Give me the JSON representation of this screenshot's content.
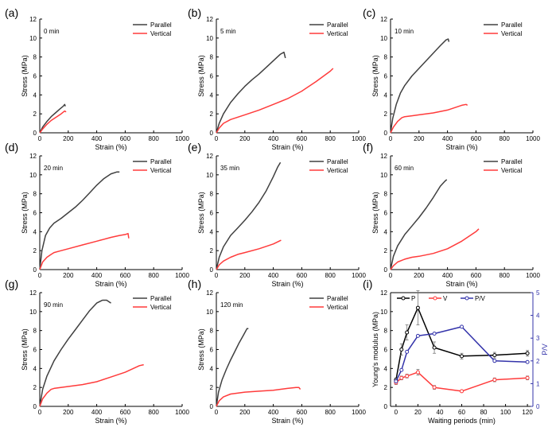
{
  "colors": {
    "parallel": "#404040",
    "vertical": "#ff3b3b",
    "pv": "#3333aa",
    "axis": "#000000"
  },
  "chart_data": [
    {
      "id": "a",
      "type": "line",
      "panel_label": "(a)",
      "annotation": "0 min",
      "xlabel": "Strain (%)",
      "ylabel": "Stress (MPa)",
      "xlim": [
        0,
        1000
      ],
      "ylim": [
        0,
        12
      ],
      "xticks": [
        "0",
        "200",
        "400",
        "600",
        "800",
        "1000"
      ],
      "yticks": [
        "0",
        "2",
        "4",
        "6",
        "8",
        "10",
        "12"
      ],
      "legend": [
        "Parallel",
        "Vertical"
      ],
      "series": [
        {
          "name": "Parallel",
          "x": [
            0,
            20,
            50,
            80,
            110,
            140,
            165,
            175,
            180
          ],
          "y": [
            0,
            0.6,
            1.2,
            1.7,
            2.1,
            2.5,
            2.8,
            3.0,
            2.8
          ]
        },
        {
          "name": "Vertical",
          "x": [
            0,
            20,
            50,
            80,
            120,
            150,
            175,
            185
          ],
          "y": [
            0,
            0.4,
            0.9,
            1.3,
            1.7,
            2.0,
            2.3,
            2.2
          ]
        }
      ]
    },
    {
      "id": "b",
      "type": "line",
      "panel_label": "(b)",
      "annotation": "5 min",
      "xlabel": "Strain (%)",
      "ylabel": "Stress (MPa)",
      "xlim": [
        0,
        1000
      ],
      "ylim": [
        0,
        12
      ],
      "xticks": [
        "0",
        "200",
        "400",
        "600",
        "800",
        "1000"
      ],
      "yticks": [
        "0",
        "2",
        "4",
        "6",
        "8",
        "10",
        "12"
      ],
      "legend": [
        "Parallel",
        "Vertical"
      ],
      "series": [
        {
          "name": "Parallel",
          "x": [
            0,
            20,
            50,
            100,
            150,
            200,
            250,
            300,
            350,
            400,
            450,
            475,
            485
          ],
          "y": [
            0,
            1.0,
            2.0,
            3.2,
            4.1,
            4.9,
            5.6,
            6.2,
            6.9,
            7.6,
            8.3,
            8.5,
            7.9
          ]
        },
        {
          "name": "Vertical",
          "x": [
            0,
            20,
            50,
            100,
            200,
            300,
            400,
            500,
            600,
            700,
            800,
            820
          ],
          "y": [
            0,
            0.5,
            1.0,
            1.4,
            1.9,
            2.4,
            3.0,
            3.6,
            4.4,
            5.4,
            6.5,
            6.8
          ]
        }
      ]
    },
    {
      "id": "c",
      "type": "line",
      "panel_label": "(c)",
      "annotation": "10 min",
      "xlabel": "Strain (%)",
      "ylabel": "Stress (MPa)",
      "xlim": [
        0,
        1000
      ],
      "ylim": [
        0,
        12
      ],
      "xticks": [
        "0",
        "200",
        "400",
        "600",
        "800",
        "1000"
      ],
      "yticks": [
        "0",
        "2",
        "4",
        "6",
        "8",
        "10",
        "12"
      ],
      "legend": [
        "Parallel",
        "Vertical"
      ],
      "series": [
        {
          "name": "Parallel",
          "x": [
            0,
            15,
            40,
            70,
            100,
            150,
            200,
            250,
            300,
            350,
            390,
            405,
            410
          ],
          "y": [
            0,
            1.5,
            3.0,
            4.2,
            5.0,
            6.0,
            6.8,
            7.6,
            8.4,
            9.2,
            9.8,
            9.9,
            9.6
          ]
        },
        {
          "name": "Vertical",
          "x": [
            0,
            20,
            50,
            80,
            100,
            150,
            200,
            300,
            400,
            500,
            530,
            540
          ],
          "y": [
            0,
            0.6,
            1.2,
            1.6,
            1.7,
            1.8,
            1.9,
            2.1,
            2.4,
            2.9,
            3.0,
            2.9
          ]
        }
      ]
    },
    {
      "id": "d",
      "type": "line",
      "panel_label": "(d)",
      "annotation": "20 min",
      "xlabel": "Strain (%)",
      "ylabel": "Stress (MPa)",
      "xlim": [
        0,
        1000
      ],
      "ylim": [
        0,
        12
      ],
      "xticks": [
        "0",
        "200",
        "400",
        "600",
        "800",
        "1000"
      ],
      "yticks": [
        "0",
        "2",
        "4",
        "6",
        "8",
        "10",
        "12"
      ],
      "legend": [
        "Parallel",
        "Vertical"
      ],
      "series": [
        {
          "name": "Parallel",
          "x": [
            0,
            15,
            40,
            70,
            100,
            150,
            200,
            250,
            300,
            350,
            400,
            450,
            500,
            540,
            560
          ],
          "y": [
            0,
            2.0,
            3.6,
            4.4,
            4.9,
            5.4,
            6.0,
            6.6,
            7.3,
            8.1,
            8.9,
            9.6,
            10.1,
            10.3,
            10.3
          ]
        },
        {
          "name": "Vertical",
          "x": [
            0,
            20,
            50,
            80,
            100,
            150,
            200,
            300,
            400,
            500,
            560,
            600,
            620,
            625
          ],
          "y": [
            0,
            0.8,
            1.3,
            1.6,
            1.8,
            2.0,
            2.2,
            2.6,
            3.0,
            3.4,
            3.6,
            3.7,
            3.8,
            3.3
          ]
        }
      ]
    },
    {
      "id": "e",
      "type": "line",
      "panel_label": "(e)",
      "annotation": "35 min",
      "xlabel": "Strain (%)",
      "ylabel": "Stress (MPa)",
      "xlim": [
        0,
        1000
      ],
      "ylim": [
        0,
        12
      ],
      "xticks": [
        "0",
        "200",
        "400",
        "600",
        "800",
        "1000"
      ],
      "yticks": [
        "0",
        "2",
        "4",
        "6",
        "8",
        "10",
        "12"
      ],
      "legend": [
        "Parallel",
        "Vertical"
      ],
      "series": [
        {
          "name": "Parallel",
          "x": [
            0,
            20,
            50,
            100,
            150,
            200,
            250,
            300,
            350,
            400,
            430,
            450
          ],
          "y": [
            0,
            1.3,
            2.4,
            3.6,
            4.4,
            5.2,
            6.1,
            7.1,
            8.3,
            9.8,
            10.8,
            11.3
          ]
        },
        {
          "name": "Vertical",
          "x": [
            0,
            20,
            50,
            100,
            150,
            200,
            300,
            400,
            440,
            455
          ],
          "y": [
            0,
            0.5,
            0.9,
            1.3,
            1.6,
            1.8,
            2.2,
            2.7,
            3.0,
            3.1
          ]
        }
      ]
    },
    {
      "id": "f",
      "type": "line",
      "panel_label": "(f)",
      "annotation": "60 min",
      "xlabel": "Strain (%)",
      "ylabel": "Stress (MPa)",
      "xlim": [
        0,
        1000
      ],
      "ylim": [
        0,
        12
      ],
      "xticks": [
        "0",
        "200",
        "400",
        "600",
        "800",
        "1000"
      ],
      "yticks": [
        "0",
        "2",
        "4",
        "6",
        "8",
        "10",
        "12"
      ],
      "legend": [
        "Parallel",
        "Vertical"
      ],
      "series": [
        {
          "name": "Parallel",
          "x": [
            0,
            20,
            50,
            100,
            150,
            200,
            250,
            300,
            350,
            380,
            395
          ],
          "y": [
            0,
            1.4,
            2.5,
            3.7,
            4.6,
            5.5,
            6.5,
            7.6,
            8.8,
            9.3,
            9.5
          ]
        },
        {
          "name": "Vertical",
          "x": [
            0,
            20,
            50,
            100,
            150,
            200,
            300,
            400,
            500,
            600,
            620
          ],
          "y": [
            0,
            0.4,
            0.8,
            1.1,
            1.3,
            1.4,
            1.7,
            2.2,
            3.0,
            4.0,
            4.3
          ]
        }
      ]
    },
    {
      "id": "g",
      "type": "line",
      "panel_label": "(g)",
      "annotation": "90 min",
      "xlabel": "Strain (%)",
      "ylabel": "Stress (MPa)",
      "xlim": [
        0,
        1000
      ],
      "ylim": [
        0,
        12
      ],
      "xticks": [
        "0",
        "200",
        "400",
        "600",
        "800",
        "1000"
      ],
      "yticks": [
        "0",
        "2",
        "4",
        "6",
        "8",
        "10",
        "12"
      ],
      "legend": [
        "Parallel",
        "Vertical"
      ],
      "series": [
        {
          "name": "Parallel",
          "x": [
            0,
            20,
            50,
            100,
            150,
            200,
            250,
            300,
            350,
            400,
            440,
            470,
            500
          ],
          "y": [
            0,
            1.8,
            3.2,
            4.8,
            6.0,
            7.1,
            8.1,
            9.1,
            10.1,
            10.9,
            11.2,
            11.2,
            10.9
          ]
        },
        {
          "name": "Vertical",
          "x": [
            0,
            20,
            50,
            80,
            100,
            200,
            300,
            400,
            500,
            600,
            700,
            730
          ],
          "y": [
            0,
            0.8,
            1.4,
            1.8,
            1.9,
            2.1,
            2.3,
            2.6,
            3.1,
            3.6,
            4.3,
            4.4
          ]
        }
      ]
    },
    {
      "id": "h",
      "type": "line",
      "panel_label": "(h)",
      "annotation": "120 min",
      "xlabel": "Strain (%)",
      "ylabel": "Stress (MPa)",
      "xlim": [
        0,
        1000
      ],
      "ylim": [
        0,
        12
      ],
      "xticks": [
        "0",
        "200",
        "400",
        "600",
        "800",
        "1000"
      ],
      "yticks": [
        "0",
        "2",
        "4",
        "6",
        "8",
        "10",
        "12"
      ],
      "legend": [
        "Parallel",
        "Vertical"
      ],
      "series": [
        {
          "name": "Parallel",
          "x": [
            0,
            15,
            40,
            70,
            100,
            130,
            160,
            190,
            215,
            225
          ],
          "y": [
            0,
            1.5,
            2.8,
            3.9,
            4.9,
            5.8,
            6.7,
            7.5,
            8.2,
            8.2
          ]
        },
        {
          "name": "Vertical",
          "x": [
            0,
            20,
            50,
            100,
            200,
            300,
            400,
            500,
            560,
            580,
            590
          ],
          "y": [
            0,
            0.6,
            1.0,
            1.3,
            1.5,
            1.6,
            1.7,
            1.9,
            2.0,
            2.0,
            1.8
          ]
        }
      ]
    },
    {
      "id": "i",
      "type": "line",
      "panel_label": "(i)",
      "xlabel": "Waiting periods (min)",
      "ylabel": "Young's modulus (MPa)",
      "y2label": "P/V",
      "xlim": [
        -5,
        125
      ],
      "ylim": [
        0,
        12
      ],
      "y2lim": [
        0,
        5
      ],
      "xticks": [
        "0",
        "20",
        "40",
        "60",
        "80",
        "100",
        "120"
      ],
      "yticks": [
        "0",
        "2",
        "4",
        "6",
        "8",
        "10",
        "12"
      ],
      "y2ticks": [
        "0",
        "1",
        "2",
        "3",
        "4",
        "5"
      ],
      "legend": [
        "P",
        "V",
        "P/V"
      ],
      "x": [
        0,
        5,
        10,
        20,
        35,
        60,
        90,
        120
      ],
      "series": [
        {
          "name": "P",
          "axis": "left",
          "values": [
            2.8,
            6.0,
            7.8,
            10.4,
            6.2,
            5.3,
            5.4,
            5.6
          ],
          "errors": [
            0.2,
            0.6,
            0.8,
            1.8,
            0.6,
            0.3,
            0.3,
            0.3
          ]
        },
        {
          "name": "V",
          "axis": "left",
          "values": [
            2.5,
            3.0,
            3.2,
            3.6,
            2.0,
            1.6,
            2.8,
            3.0
          ],
          "errors": [
            0.2,
            0.2,
            0.2,
            0.3,
            0.2,
            0.1,
            0.2,
            0.2
          ]
        },
        {
          "name": "P/V",
          "axis": "right",
          "values": [
            1.1,
            1.6,
            2.4,
            3.1,
            3.2,
            3.5,
            2.0,
            1.95
          ]
        }
      ]
    }
  ]
}
